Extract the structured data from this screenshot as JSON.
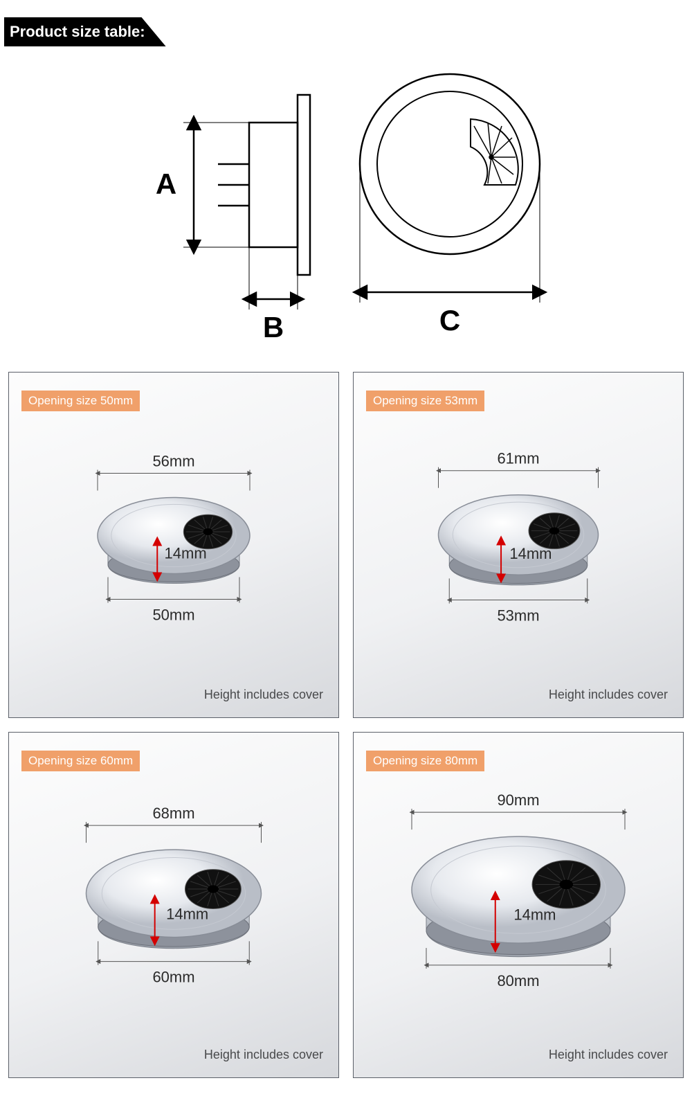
{
  "header": {
    "title": "Product size table:"
  },
  "diagram": {
    "labels": {
      "A": "A",
      "B": "B",
      "C": "C"
    },
    "stroke": "#000000",
    "label_fontsize": 40,
    "label_fontfamily": "Arial"
  },
  "cards": [
    {
      "badge": "Opening size 50mm",
      "top_dim": "56mm",
      "bottom_dim": "50mm",
      "height_dim": "14mm",
      "note": "Height includes cover",
      "scale": 1.0
    },
    {
      "badge": "Opening size 53mm",
      "top_dim": "61mm",
      "bottom_dim": "53mm",
      "height_dim": "14mm",
      "note": "Height includes cover",
      "scale": 1.05
    },
    {
      "badge": "Opening size 60mm",
      "top_dim": "68mm",
      "bottom_dim": "60mm",
      "height_dim": "14mm",
      "note": "Height includes cover",
      "scale": 1.15
    },
    {
      "badge": "Opening size 80mm",
      "top_dim": "90mm",
      "bottom_dim": "80mm",
      "height_dim": "14mm",
      "note": "Height includes cover",
      "scale": 1.4
    }
  ],
  "colors": {
    "badge_bg": "#f0a06a",
    "badge_text": "#ffffff",
    "card_border": "#5a5f68",
    "dim_text": "#2a2a2a",
    "dim_line": "#555555",
    "height_arrow": "#d40000",
    "note_text": "#48494b"
  }
}
